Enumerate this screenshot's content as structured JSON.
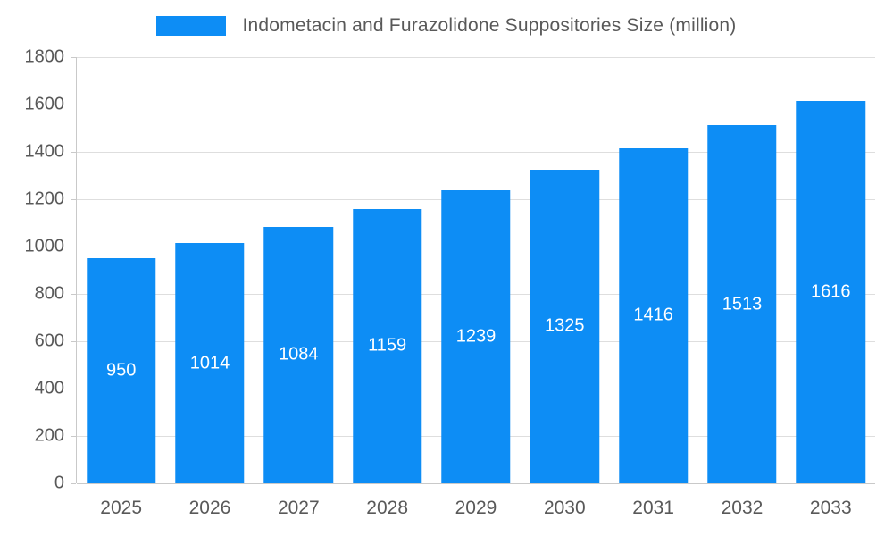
{
  "chart_data": {
    "type": "bar",
    "title": "Indometacin and Furazolidone Suppositories Size (million)",
    "categories": [
      "2025",
      "2026",
      "2027",
      "2028",
      "2029",
      "2030",
      "2031",
      "2032",
      "2033"
    ],
    "values": [
      950,
      1014,
      1084,
      1159,
      1239,
      1325,
      1416,
      1513,
      1616
    ],
    "series_name": "Indometacin and Furazolidone Suppositories Size (million)",
    "xlabel": "",
    "ylabel": "",
    "ylim": [
      0,
      1800
    ],
    "ytick_step": 200,
    "yticks": [
      0,
      200,
      400,
      600,
      800,
      1000,
      1200,
      1400,
      1600,
      1800
    ],
    "grid": "horizontal",
    "legend_position": "top",
    "bar_color": "#0d8df5",
    "bar_label_color": "#ffffff",
    "axis_text_color": "#595959",
    "gridline_color": "#dedede",
    "background_color": "#ffffff"
  }
}
